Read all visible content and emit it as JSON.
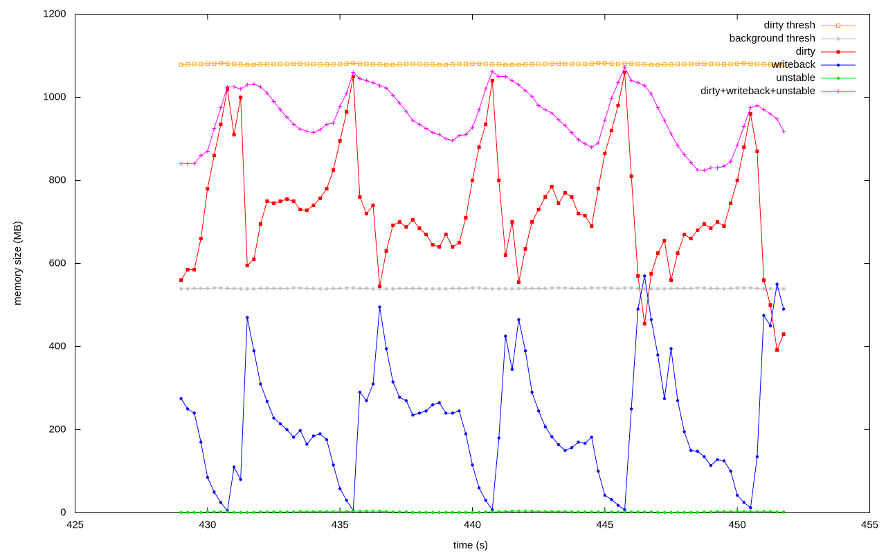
{
  "chart_data": {
    "type": "line",
    "x_label": "time (s)",
    "y_label": "memory size (MB)",
    "xlim": [
      425,
      455
    ],
    "xticks": [
      425,
      430,
      435,
      440,
      445,
      450,
      455
    ],
    "ylim": [
      0,
      1200
    ],
    "yticks": [
      0,
      200,
      400,
      600,
      800,
      1000,
      1200
    ],
    "grid": false,
    "legend": "top-right",
    "x": [
      429,
      429.25,
      429.5,
      429.75,
      430,
      430.25,
      430.5,
      430.75,
      431,
      431.25,
      431.5,
      431.75,
      432,
      432.25,
      432.5,
      432.75,
      433,
      433.25,
      433.5,
      433.75,
      434,
      434.25,
      434.5,
      434.75,
      435,
      435.25,
      435.5,
      435.75,
      436,
      436.25,
      436.5,
      436.75,
      437,
      437.25,
      437.5,
      437.75,
      438,
      438.25,
      438.5,
      438.75,
      439,
      439.25,
      439.5,
      439.75,
      440,
      440.25,
      440.5,
      440.75,
      441,
      441.25,
      441.5,
      441.75,
      442,
      442.25,
      442.5,
      442.75,
      443,
      443.25,
      443.5,
      443.75,
      444,
      444.25,
      444.5,
      444.75,
      445,
      445.25,
      445.5,
      445.75,
      446,
      446.25,
      446.5,
      446.75,
      447,
      447.25,
      447.5,
      447.75,
      448,
      448.25,
      448.5,
      448.75,
      449,
      449.25,
      449.5,
      449.75,
      450,
      450.25,
      450.5,
      450.75,
      451,
      451.25,
      451.5,
      451.75
    ],
    "series": [
      {
        "name": "dirty thresh",
        "color": "#ffa500",
        "marker": "open-square",
        "values": [
          1078,
          1079,
          1080,
          1080,
          1081,
          1081,
          1082,
          1081,
          1080,
          1079,
          1078,
          1078,
          1079,
          1079,
          1080,
          1080,
          1080,
          1081,
          1081,
          1080,
          1080,
          1079,
          1079,
          1079,
          1080,
          1081,
          1082,
          1081,
          1080,
          1079,
          1079,
          1078,
          1078,
          1079,
          1080,
          1080,
          1080,
          1079,
          1079,
          1078,
          1078,
          1079,
          1080,
          1080,
          1081,
          1081,
          1080,
          1079,
          1079,
          1078,
          1078,
          1078,
          1079,
          1079,
          1080,
          1080,
          1081,
          1081,
          1081,
          1080,
          1080,
          1080,
          1081,
          1082,
          1082,
          1081,
          1080,
          1081,
          1081,
          1080,
          1079,
          1078,
          1078,
          1079,
          1079,
          1080,
          1080,
          1080,
          1081,
          1081,
          1080,
          1080,
          1079,
          1080,
          1081,
          1082,
          1081,
          1080,
          1079,
          1079,
          1078,
          1078
        ]
      },
      {
        "name": "background thresh",
        "color": "#c0c0c0",
        "marker": "star",
        "values": [
          539,
          539,
          540,
          540,
          540,
          541,
          541,
          540,
          540,
          539,
          539,
          539,
          540,
          540,
          540,
          540,
          540,
          541,
          541,
          540,
          540,
          539,
          539,
          540,
          540,
          541,
          541,
          540,
          540,
          539,
          539,
          539,
          539,
          540,
          540,
          540,
          540,
          539,
          539,
          539,
          539,
          540,
          540,
          540,
          541,
          541,
          540,
          539,
          539,
          539,
          539,
          539,
          540,
          540,
          540,
          540,
          541,
          541,
          541,
          540,
          540,
          540,
          541,
          541,
          541,
          541,
          540,
          541,
          541,
          540,
          539,
          539,
          539,
          539,
          540,
          540,
          540,
          540,
          541,
          541,
          540,
          540,
          539,
          540,
          541,
          541,
          541,
          540,
          539,
          539,
          539,
          539
        ]
      },
      {
        "name": "dirty",
        "color": "#ff0000",
        "marker": "filled-square",
        "values": [
          560,
          585,
          585,
          660,
          780,
          860,
          935,
          1020,
          910,
          1000,
          595,
          610,
          695,
          750,
          745,
          750,
          755,
          750,
          730,
          728,
          740,
          757,
          780,
          825,
          895,
          965,
          1050,
          760,
          720,
          740,
          545,
          630,
          692,
          700,
          688,
          705,
          685,
          670,
          645,
          640,
          670,
          640,
          650,
          710,
          800,
          880,
          935,
          1040,
          800,
          620,
          700,
          555,
          635,
          700,
          730,
          760,
          785,
          745,
          770,
          760,
          720,
          715,
          690,
          780,
          865,
          920,
          980,
          1060,
          810,
          570,
          455,
          575,
          625,
          655,
          560,
          625,
          670,
          660,
          680,
          695,
          685,
          700,
          690,
          745,
          800,
          880,
          960,
          870,
          560,
          500,
          392,
          430
        ]
      },
      {
        "name": "writeback",
        "color": "#0000ff",
        "marker": "circle",
        "values": [
          275,
          250,
          240,
          170,
          85,
          50,
          25,
          5,
          110,
          80,
          470,
          390,
          310,
          268,
          228,
          214,
          200,
          182,
          198,
          165,
          185,
          190,
          176,
          115,
          58,
          30,
          5,
          290,
          270,
          310,
          495,
          395,
          315,
          278,
          270,
          235,
          240,
          245,
          260,
          265,
          240,
          240,
          245,
          190,
          115,
          60,
          30,
          7,
          180,
          425,
          345,
          465,
          390,
          290,
          245,
          207,
          183,
          164,
          150,
          157,
          170,
          167,
          182,
          100,
          42,
          32,
          18,
          7,
          250,
          490,
          570,
          465,
          380,
          275,
          395,
          270,
          195,
          150,
          148,
          135,
          114,
          128,
          125,
          100,
          42,
          25,
          12,
          135,
          475,
          450,
          550,
          490
        ]
      },
      {
        "name": "unstable",
        "color": "#00ee00",
        "marker": "circle",
        "values": [
          1,
          1,
          1,
          1,
          2,
          2,
          2,
          2,
          1,
          1,
          1,
          1,
          2,
          2,
          2,
          2,
          2,
          2,
          3,
          3,
          3,
          3,
          3,
          3,
          3,
          3,
          4,
          4,
          4,
          4,
          4,
          3,
          2,
          2,
          2,
          1,
          1,
          1,
          1,
          1,
          1,
          1,
          1,
          1,
          1,
          1,
          2,
          2,
          3,
          3,
          4,
          4,
          4,
          4,
          3,
          3,
          3,
          3,
          3,
          2,
          2,
          2,
          2,
          2,
          2,
          2,
          2,
          2,
          2,
          2,
          2,
          2,
          1,
          1,
          1,
          1,
          1,
          1,
          1,
          2,
          2,
          3,
          3,
          3,
          3,
          3,
          3,
          3,
          3,
          3,
          2,
          2
        ]
      },
      {
        "name": "dirty+writeback+unstable",
        "color": "#ff00ff",
        "marker": "plus",
        "values": [
          840,
          840,
          840,
          860,
          870,
          925,
          975,
          1025,
          1025,
          1020,
          1030,
          1032,
          1025,
          1010,
          990,
          970,
          952,
          935,
          923,
          918,
          915,
          922,
          935,
          938,
          978,
          1010,
          1060,
          1045,
          1040,
          1035,
          1028,
          1022,
          1005,
          986,
          966,
          944,
          935,
          925,
          915,
          910,
          900,
          896,
          908,
          910,
          927,
          970,
          1020,
          1062,
          1050,
          1050,
          1040,
          1030,
          1016,
          1002,
          980,
          970,
          962,
          946,
          932,
          915,
          898,
          888,
          880,
          890,
          945,
          997,
          1035,
          1072,
          1040,
          1035,
          1028,
          1008,
          975,
          945,
          912,
          884,
          862,
          843,
          825,
          824,
          830,
          830,
          834,
          845,
          885,
          930,
          975,
          980,
          970,
          960,
          948,
          918
        ]
      }
    ]
  }
}
